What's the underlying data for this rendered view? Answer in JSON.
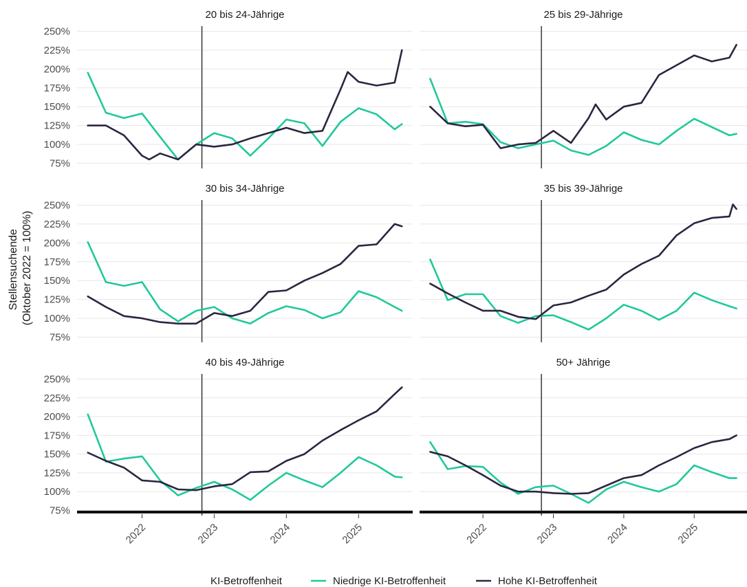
{
  "chart_data": {
    "type": "line",
    "ylabel": "Stellensuchende\n(Oktober 2022 = 100%)",
    "y_ticks": [
      "75%",
      "100%",
      "125%",
      "150%",
      "175%",
      "200%",
      "225%",
      "250%"
    ],
    "y_tick_values": [
      75,
      100,
      125,
      150,
      175,
      200,
      225,
      250
    ],
    "ylim": [
      70,
      255
    ],
    "x_ticks": [
      "2022",
      "2023",
      "2024",
      "2025"
    ],
    "x_tick_values": [
      2022.0,
      2023.0,
      2024.0,
      2025.0
    ],
    "xlim": [
      2021.1,
      2025.75
    ],
    "reference_line_x": 2022.83,
    "legend": {
      "title": "KI-Betroffenheit",
      "entries": [
        {
          "label": "Niedrige KI-Betroffenheit",
          "color": "#1fc99a"
        },
        {
          "label": "Hohe KI-Betroffenheit",
          "color": "#2b2540"
        }
      ],
      "placement": "bottom"
    },
    "colors": {
      "low": "#1fc99a",
      "high": "#2b2540"
    },
    "panels": [
      {
        "title": "20 bis 24-Jährige",
        "series": [
          {
            "name": "Niedrige KI-Betroffenheit",
            "key": "low",
            "x": [
              2021.25,
              2021.5,
              2021.75,
              2022.0,
              2022.25,
              2022.5,
              2022.75,
              2023.0,
              2023.25,
              2023.5,
              2023.75,
              2024.0,
              2024.25,
              2024.5,
              2024.75,
              2025.0,
              2025.25,
              2025.5,
              2025.6
            ],
            "y": [
              195,
              142,
              135,
              141,
              110,
              80,
              100,
              115,
              108,
              85,
              108,
              133,
              128,
              98,
              130,
              148,
              140,
              120,
              127
            ]
          },
          {
            "name": "Hohe KI-Betroffenheit",
            "key": "high",
            "x": [
              2021.25,
              2021.5,
              2021.75,
              2022.0,
              2022.1,
              2022.25,
              2022.5,
              2022.75,
              2023.0,
              2023.25,
              2023.5,
              2023.75,
              2024.0,
              2024.25,
              2024.5,
              2024.75,
              2024.85,
              2025.0,
              2025.25,
              2025.5,
              2025.6
            ],
            "y": [
              125,
              125,
              112,
              85,
              80,
              88,
              80,
              100,
              97,
              100,
              108,
              115,
              122,
              115,
              118,
              173,
              196,
              183,
              178,
              182,
              225
            ]
          }
        ]
      },
      {
        "title": "25 bis 29-Jährige",
        "series": [
          {
            "name": "Niedrige KI-Betroffenheit",
            "key": "low",
            "x": [
              2021.25,
              2021.5,
              2021.75,
              2022.0,
              2022.25,
              2022.5,
              2022.75,
              2023.0,
              2023.25,
              2023.5,
              2023.75,
              2024.0,
              2024.25,
              2024.5,
              2024.75,
              2025.0,
              2025.25,
              2025.5,
              2025.6
            ],
            "y": [
              187,
              128,
              130,
              127,
              103,
              95,
              100,
              105,
              92,
              86,
              98,
              116,
              106,
              100,
              118,
              134,
              123,
              112,
              114
            ]
          },
          {
            "name": "Hohe KI-Betroffenheit",
            "key": "high",
            "x": [
              2021.25,
              2021.5,
              2021.75,
              2022.0,
              2022.25,
              2022.5,
              2022.75,
              2023.0,
              2023.25,
              2023.5,
              2023.6,
              2023.75,
              2024.0,
              2024.25,
              2024.5,
              2024.75,
              2025.0,
              2025.25,
              2025.5,
              2025.6
            ],
            "y": [
              150,
              128,
              124,
              126,
              95,
              100,
              102,
              118,
              102,
              135,
              153,
              133,
              150,
              155,
              192,
              205,
              218,
              210,
              215,
              232
            ]
          }
        ]
      },
      {
        "title": "30 bis 34-Jährige",
        "series": [
          {
            "name": "Niedrige KI-Betroffenheit",
            "key": "low",
            "x": [
              2021.25,
              2021.5,
              2021.75,
              2022.0,
              2022.25,
              2022.5,
              2022.75,
              2023.0,
              2023.25,
              2023.5,
              2023.75,
              2024.0,
              2024.25,
              2024.5,
              2024.75,
              2025.0,
              2025.25,
              2025.5,
              2025.6
            ],
            "y": [
              201,
              148,
              143,
              148,
              112,
              96,
              110,
              115,
              100,
              93,
              107,
              116,
              111,
              100,
              108,
              136,
              128,
              115,
              110
            ]
          },
          {
            "name": "Hohe KI-Betroffenheit",
            "key": "high",
            "x": [
              2021.25,
              2021.5,
              2021.75,
              2022.0,
              2022.25,
              2022.5,
              2022.75,
              2023.0,
              2023.25,
              2023.5,
              2023.75,
              2024.0,
              2024.25,
              2024.5,
              2024.75,
              2025.0,
              2025.25,
              2025.5,
              2025.6
            ],
            "y": [
              129,
              115,
              103,
              100,
              95,
              93,
              93,
              107,
              103,
              110,
              135,
              137,
              150,
              160,
              172,
              196,
              198,
              225,
              222
            ]
          }
        ]
      },
      {
        "title": "35 bis 39-Jährige",
        "series": [
          {
            "name": "Niedrige KI-Betroffenheit",
            "key": "low",
            "x": [
              2021.25,
              2021.5,
              2021.75,
              2022.0,
              2022.25,
              2022.5,
              2022.75,
              2023.0,
              2023.25,
              2023.5,
              2023.75,
              2024.0,
              2024.25,
              2024.5,
              2024.75,
              2025.0,
              2025.25,
              2025.5,
              2025.6
            ],
            "y": [
              178,
              124,
              132,
              132,
              103,
              94,
              103,
              104,
              95,
              85,
              100,
              118,
              110,
              98,
              110,
              134,
              124,
              116,
              113
            ]
          },
          {
            "name": "Hohe KI-Betroffenheit",
            "key": "high",
            "x": [
              2021.25,
              2021.5,
              2021.75,
              2022.0,
              2022.25,
              2022.5,
              2022.75,
              2023.0,
              2023.25,
              2023.5,
              2023.75,
              2024.0,
              2024.25,
              2024.5,
              2024.75,
              2025.0,
              2025.25,
              2025.5,
              2025.55,
              2025.6
            ],
            "y": [
              146,
              133,
              121,
              110,
              110,
              102,
              99,
              117,
              121,
              130,
              138,
              158,
              172,
              183,
              210,
              226,
              233,
              235,
              251,
              245
            ]
          }
        ]
      },
      {
        "title": "40 bis 49-Jährige",
        "series": [
          {
            "name": "Niedrige KI-Betroffenheit",
            "key": "low",
            "x": [
              2021.25,
              2021.5,
              2021.75,
              2022.0,
              2022.25,
              2022.5,
              2022.75,
              2023.0,
              2023.25,
              2023.5,
              2023.75,
              2024.0,
              2024.25,
              2024.5,
              2024.75,
              2025.0,
              2025.25,
              2025.5,
              2025.6
            ],
            "y": [
              203,
              140,
              144,
              147,
              115,
              95,
              105,
              113,
              103,
              89,
              108,
              125,
              115,
              106,
              125,
              146,
              135,
              120,
              119
            ]
          },
          {
            "name": "Hohe KI-Betroffenheit",
            "key": "high",
            "x": [
              2021.25,
              2021.5,
              2021.75,
              2022.0,
              2022.25,
              2022.5,
              2022.75,
              2023.0,
              2023.25,
              2023.5,
              2023.75,
              2024.0,
              2024.25,
              2024.5,
              2024.75,
              2025.0,
              2025.25,
              2025.5,
              2025.6
            ],
            "y": [
              152,
              141,
              132,
              115,
              113,
              103,
              102,
              107,
              110,
              126,
              127,
              141,
              150,
              168,
              182,
              195,
              207,
              230,
              239
            ]
          }
        ]
      },
      {
        "title": "50+ Jährige",
        "series": [
          {
            "name": "Niedrige KI-Betroffenheit",
            "key": "low",
            "x": [
              2021.25,
              2021.5,
              2021.75,
              2022.0,
              2022.25,
              2022.5,
              2022.75,
              2023.0,
              2023.25,
              2023.5,
              2023.75,
              2024.0,
              2024.25,
              2024.5,
              2024.75,
              2025.0,
              2025.25,
              2025.5,
              2025.6
            ],
            "y": [
              166,
              130,
              134,
              133,
              112,
              97,
              106,
              108,
              97,
              85,
              103,
              113,
              106,
              100,
              110,
              135,
              126,
              118,
              118
            ]
          },
          {
            "name": "Hohe KI-Betroffenheit",
            "key": "high",
            "x": [
              2021.25,
              2021.5,
              2021.75,
              2022.0,
              2022.25,
              2022.5,
              2022.75,
              2023.0,
              2023.25,
              2023.5,
              2023.75,
              2024.0,
              2024.25,
              2024.5,
              2024.75,
              2025.0,
              2025.25,
              2025.5,
              2025.6
            ],
            "y": [
              153,
              147,
              135,
              122,
              108,
              100,
              100,
              98,
              97,
              98,
              108,
              118,
              122,
              135,
              146,
              158,
              166,
              170,
              175
            ]
          }
        ]
      }
    ]
  }
}
